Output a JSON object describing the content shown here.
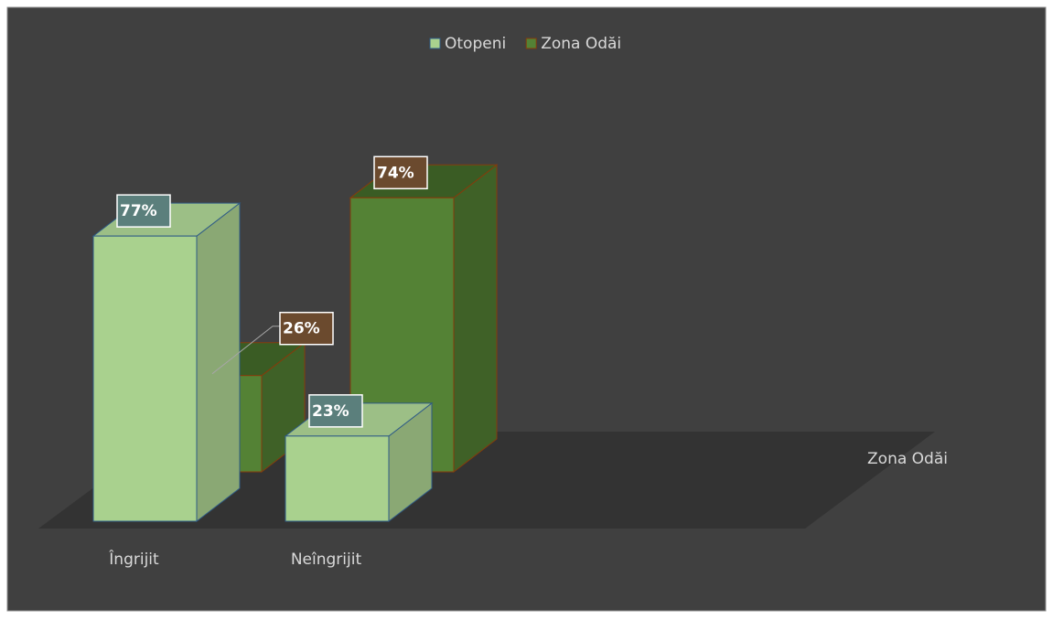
{
  "chart_data": {
    "type": "bar",
    "categories": [
      "Îngrijit",
      "Neîngrijit"
    ],
    "series": [
      {
        "name": "Otopeni",
        "color": "#a9d18e",
        "values": [
          77,
          23
        ],
        "value_labels": [
          "77%",
          "23%"
        ]
      },
      {
        "name": "Zona Odăi",
        "color": "#548235",
        "values": [
          26,
          74
        ],
        "value_labels": [
          "26%",
          "74%"
        ]
      }
    ],
    "series_axis_label": "Zona Odăi",
    "legend": "top"
  }
}
